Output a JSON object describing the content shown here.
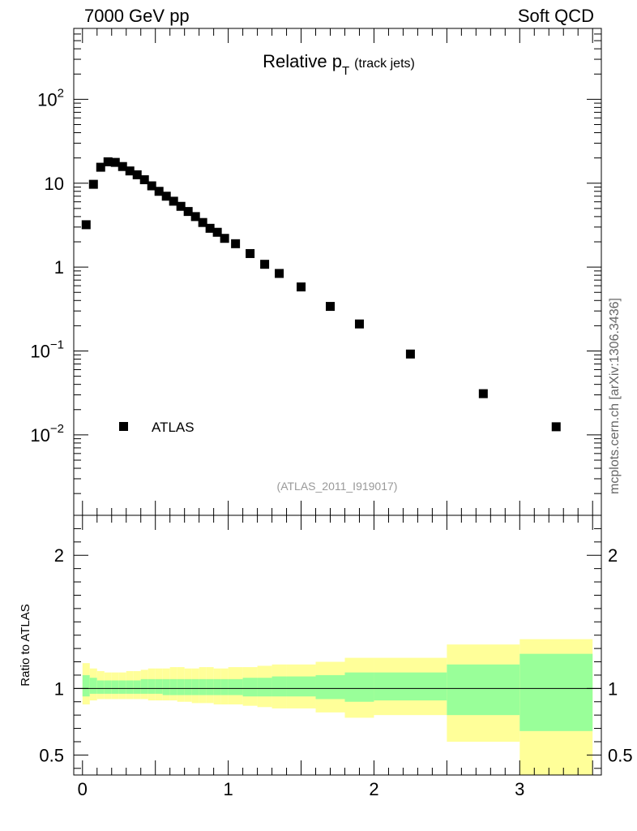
{
  "header": {
    "energy_label": "7000 GeV pp",
    "category_label": "Soft QCD"
  },
  "side_credit": "mcplots.cern.ch [arXiv:1306.3436]",
  "chart_data": [
    {
      "type": "scatter",
      "title_main": "Relative p",
      "title_sub": "T",
      "title_note": "(track jets)",
      "yscale": "log",
      "ylim": [
        0.0011,
        700
      ],
      "xlim": [
        -0.06,
        3.56
      ],
      "y_ticks": [
        {
          "value": 100,
          "base": "10",
          "exp": "2"
        },
        {
          "value": 10,
          "base": "10",
          "exp": ""
        },
        {
          "value": 1,
          "base": "1",
          "exp": ""
        },
        {
          "value": 0.1,
          "base": "10",
          "exp": "−1"
        },
        {
          "value": 0.01,
          "base": "10",
          "exp": "−2"
        }
      ],
      "legend": {
        "label": "ATLAS",
        "position": "lower-left"
      },
      "watermark": "(ATLAS_2011_I919017)",
      "series": [
        {
          "name": "ATLAS",
          "color": "#000000",
          "x": [
            0.025,
            0.075,
            0.125,
            0.175,
            0.225,
            0.275,
            0.325,
            0.375,
            0.425,
            0.475,
            0.525,
            0.575,
            0.625,
            0.675,
            0.725,
            0.775,
            0.825,
            0.875,
            0.925,
            0.975,
            1.05,
            1.15,
            1.25,
            1.35,
            1.5,
            1.7,
            1.9,
            2.25,
            2.75,
            3.25
          ],
          "y": [
            3.2,
            9.7,
            15.5,
            18,
            17.7,
            15.8,
            14,
            12.6,
            11,
            9.3,
            8,
            7,
            6.1,
            5.3,
            4.6,
            4.0,
            3.4,
            2.9,
            2.6,
            2.2,
            1.9,
            1.45,
            1.08,
            0.84,
            0.58,
            0.34,
            0.21,
            0.092,
            0.031,
            0.0125
          ]
        }
      ]
    },
    {
      "type": "area",
      "ylabel": "Ratio to ATLAS",
      "ylim": [
        0.35,
        2.3
      ],
      "xlim": [
        -0.06,
        3.56
      ],
      "x_ticks": [
        {
          "value": 0,
          "label": "0"
        },
        {
          "value": 1,
          "label": "1"
        },
        {
          "value": 2,
          "label": "2"
        },
        {
          "value": 3,
          "label": "3"
        }
      ],
      "y_ticks": [
        {
          "value": 2,
          "label": "2"
        },
        {
          "value": 1,
          "label": "1"
        },
        {
          "value": 0.5,
          "label": "0.5"
        }
      ],
      "reference_line": 1,
      "bands": {
        "bin_edges": [
          0,
          0.05,
          0.1,
          0.15,
          0.2,
          0.25,
          0.3,
          0.35,
          0.4,
          0.45,
          0.5,
          0.55,
          0.6,
          0.65,
          0.7,
          0.75,
          0.8,
          0.85,
          0.9,
          0.95,
          1.0,
          1.1,
          1.2,
          1.3,
          1.4,
          1.6,
          1.8,
          2.0,
          2.5,
          3.0,
          3.5
        ],
        "outer_color": "#ffff99",
        "inner_color": "#99ff99",
        "outer_hi": [
          1.19,
          1.15,
          1.13,
          1.12,
          1.12,
          1.12,
          1.13,
          1.13,
          1.14,
          1.15,
          1.15,
          1.15,
          1.16,
          1.16,
          1.15,
          1.15,
          1.16,
          1.16,
          1.15,
          1.15,
          1.16,
          1.16,
          1.17,
          1.18,
          1.18,
          1.2,
          1.23,
          1.23,
          1.33,
          1.37
        ],
        "outer_lo": [
          0.88,
          0.91,
          0.92,
          0.92,
          0.92,
          0.92,
          0.92,
          0.92,
          0.92,
          0.91,
          0.91,
          0.91,
          0.91,
          0.9,
          0.9,
          0.89,
          0.89,
          0.89,
          0.88,
          0.88,
          0.88,
          0.87,
          0.86,
          0.85,
          0.85,
          0.82,
          0.78,
          0.8,
          0.6,
          0.32
        ],
        "inner_hi": [
          1.1,
          1.08,
          1.06,
          1.06,
          1.06,
          1.06,
          1.06,
          1.06,
          1.07,
          1.07,
          1.07,
          1.07,
          1.07,
          1.07,
          1.07,
          1.07,
          1.07,
          1.07,
          1.07,
          1.07,
          1.07,
          1.08,
          1.08,
          1.09,
          1.09,
          1.1,
          1.12,
          1.12,
          1.18,
          1.26
        ],
        "inner_lo": [
          0.94,
          0.96,
          0.96,
          0.96,
          0.96,
          0.96,
          0.96,
          0.96,
          0.96,
          0.96,
          0.96,
          0.95,
          0.95,
          0.95,
          0.95,
          0.95,
          0.95,
          0.95,
          0.95,
          0.95,
          0.95,
          0.94,
          0.94,
          0.94,
          0.94,
          0.92,
          0.9,
          0.91,
          0.8,
          0.68
        ]
      }
    }
  ]
}
